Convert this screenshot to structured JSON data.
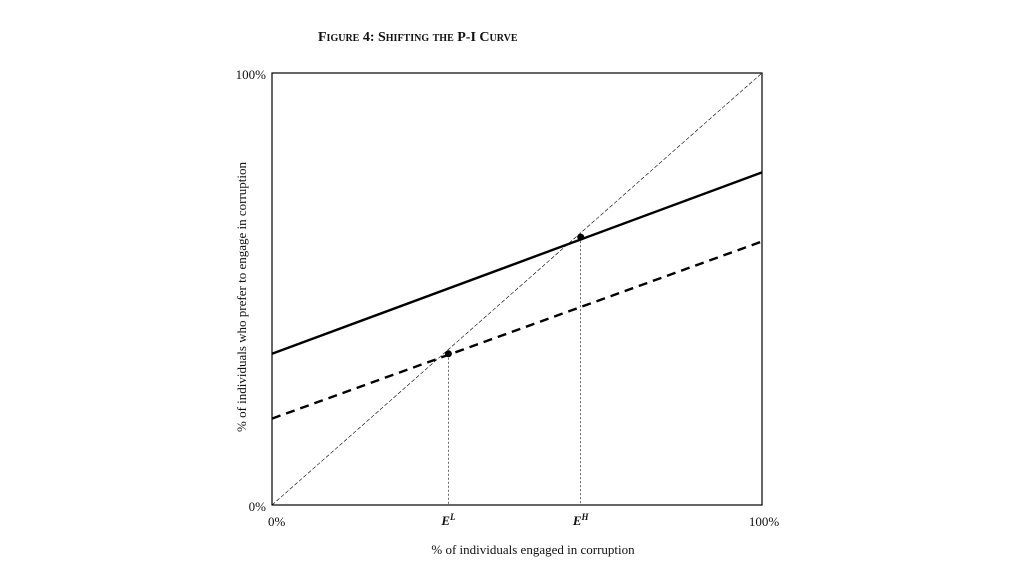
{
  "chart_data": {
    "type": "line",
    "title": "Figure 4: Shifting the P-I Curve",
    "x_label": "% of individuals engaged in corruption",
    "y_label": "% of individuals who prefer to engage in corruption",
    "xlim": [
      0,
      100
    ],
    "ylim": [
      0,
      100
    ],
    "xticks": [
      {
        "value": 0,
        "label": "0%"
      },
      {
        "value": 100,
        "label": "100%"
      }
    ],
    "yticks": [
      {
        "value": 0,
        "label": "0%"
      },
      {
        "value": 100,
        "label": "100%"
      }
    ],
    "x": [
      0,
      100
    ],
    "series": [
      {
        "color": "#000000",
        "linestyle": "solid",
        "values": [
          35,
          77
        ]
      },
      {
        "color": "#000000",
        "linestyle": "dashed",
        "values": [
          20,
          61
        ]
      },
      {
        "color": "#000000",
        "linestyle": "thin-dashed",
        "values": [
          0,
          100
        ]
      }
    ],
    "points": [
      {
        "x": 36,
        "y": 35,
        "label": "E",
        "superscript": "L"
      },
      {
        "x": 63,
        "y": 62,
        "label": "E",
        "superscript": "H"
      }
    ],
    "grid": false
  }
}
